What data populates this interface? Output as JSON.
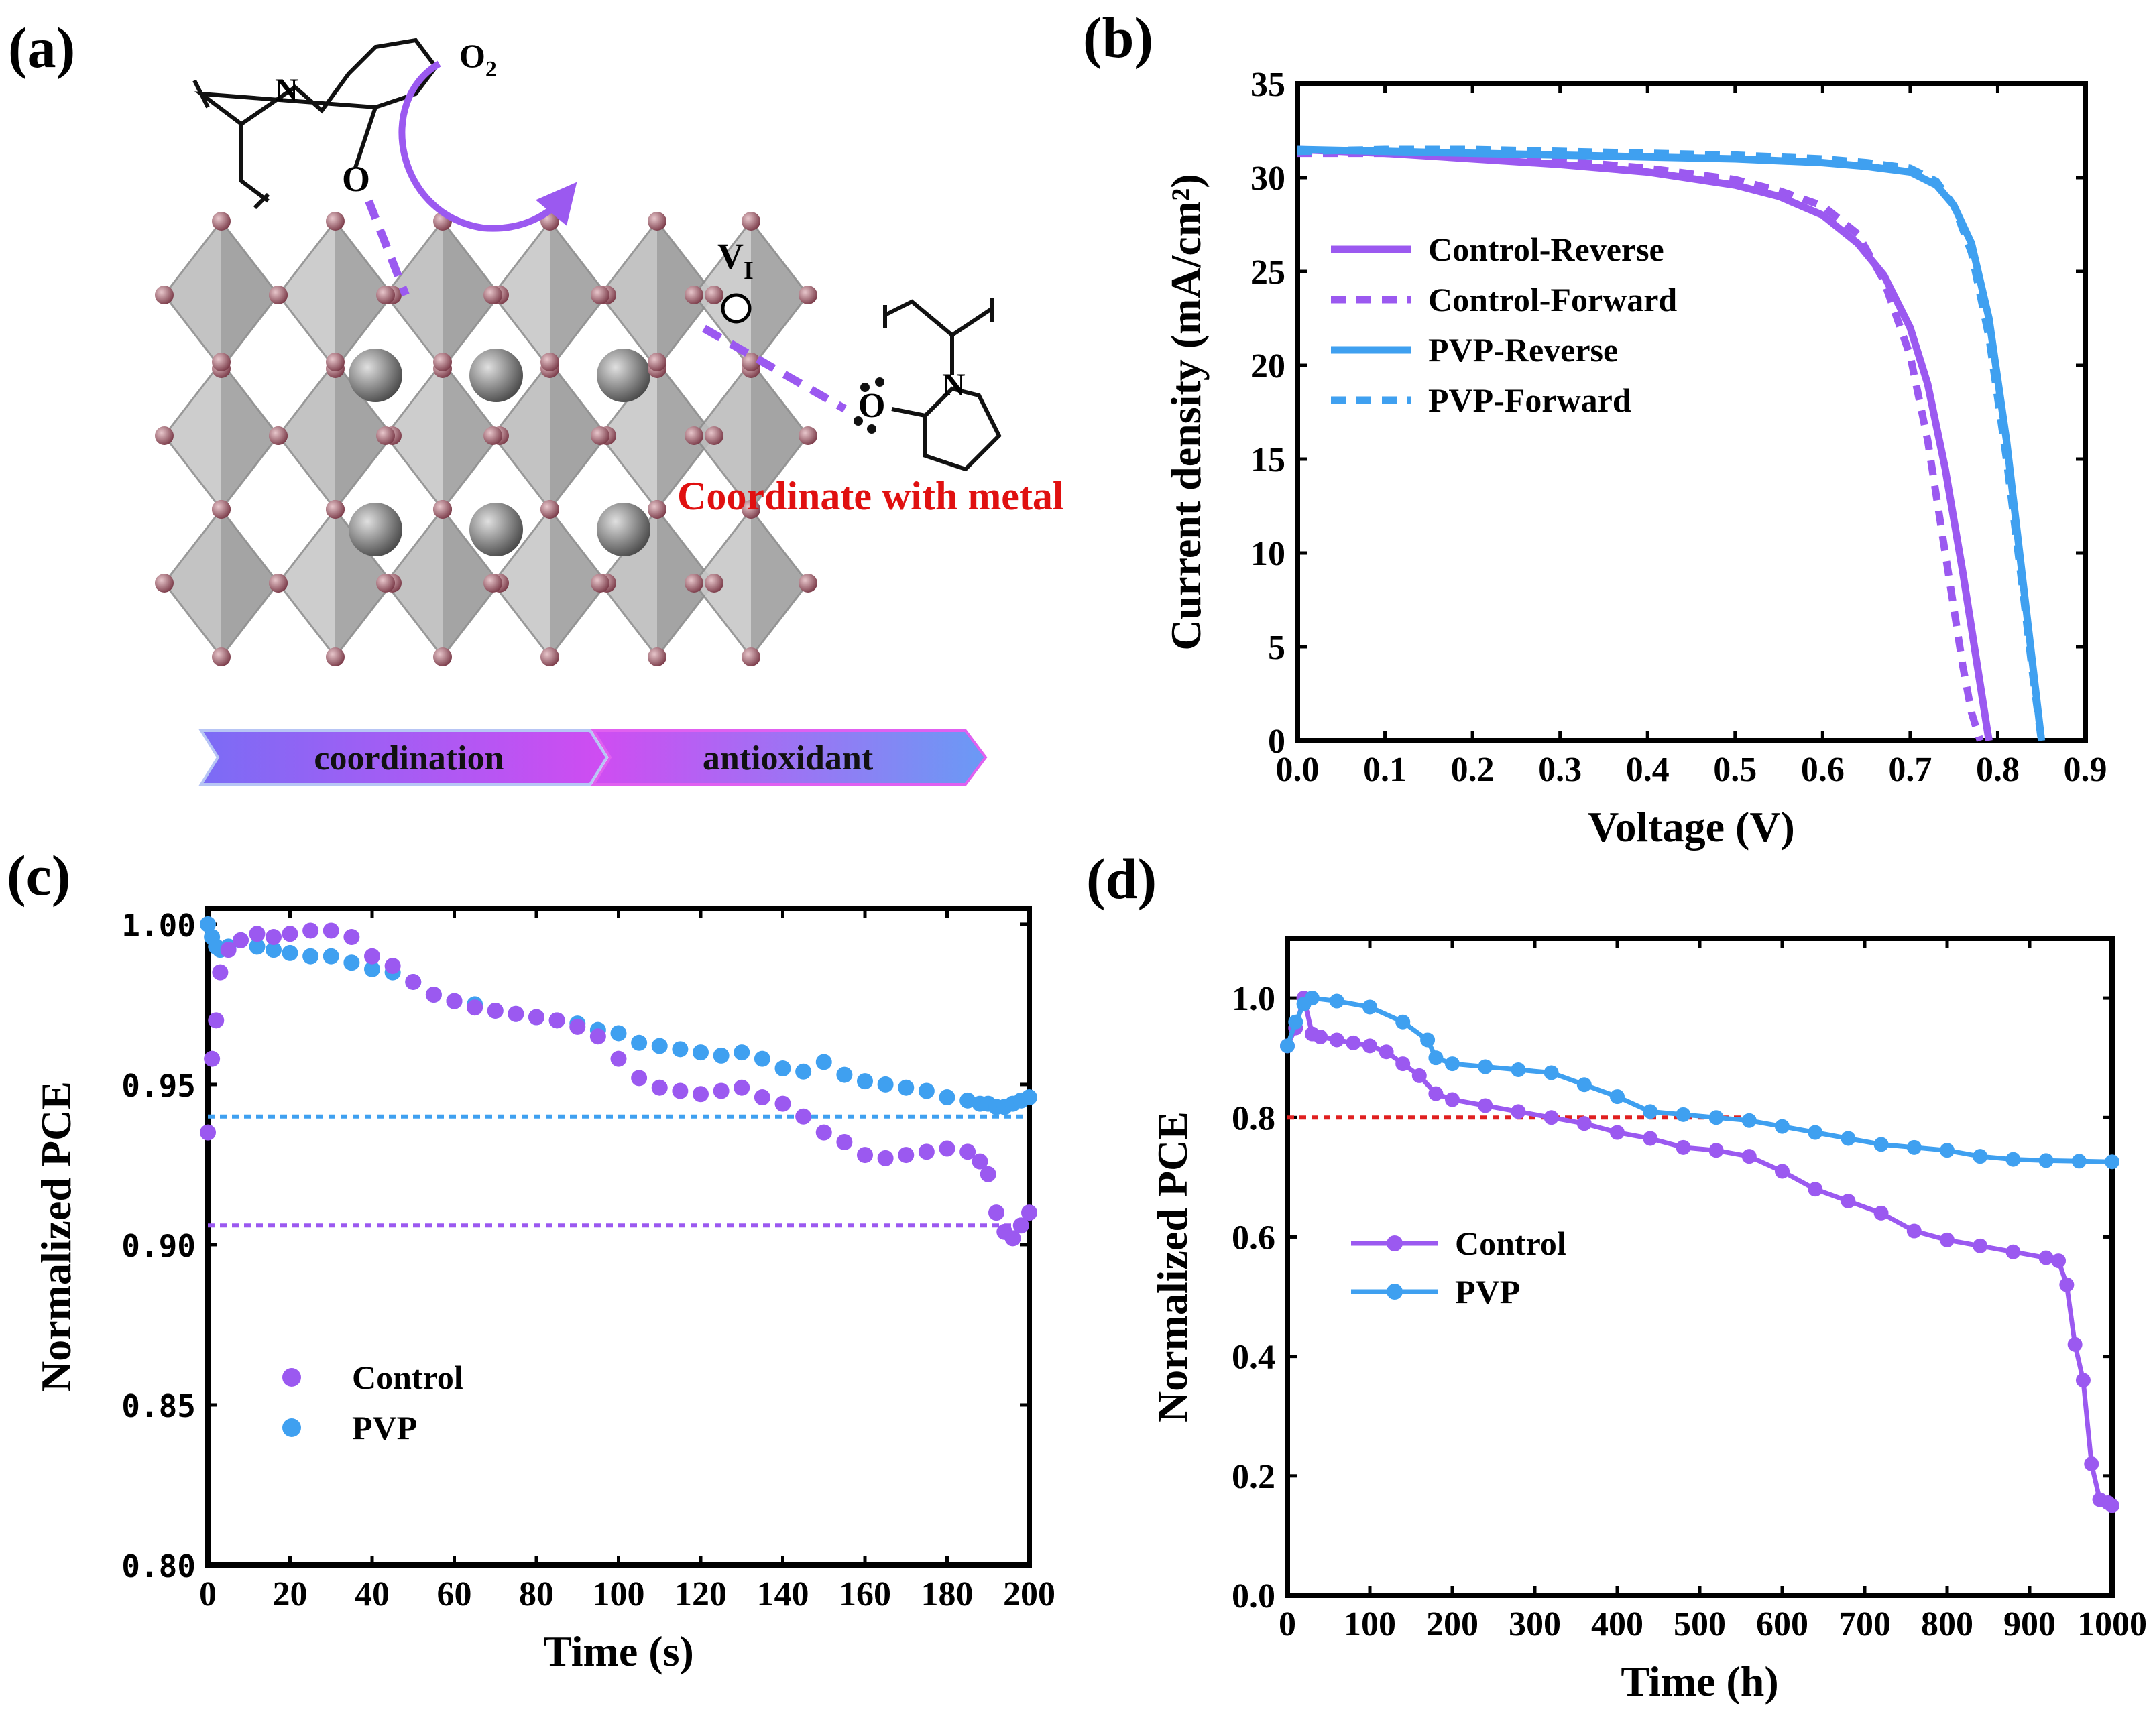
{
  "colors": {
    "control": "#9b59f0",
    "pvp": "#3fa0f0",
    "ref80": "#e02020",
    "panel_a_text": "#e01010"
  },
  "panel_a": {
    "label": "(a)",
    "oxygen": "O",
    "oxygen_sub": "2",
    "vacancy": "V",
    "vacancy_sub": "I",
    "coordinate_text": "Coordinate with metal",
    "arrow_1": "coordination",
    "arrow_2": "antioxidant",
    "atom_n1": "N",
    "atom_o1": "O",
    "atom_n2": "N",
    "atom_o2": "O"
  },
  "chart_data": [
    {
      "id": "b",
      "panel_label": "(b)",
      "type": "line",
      "xlabel": "Voltage (V)",
      "ylabel": "Current density (mA/cm²)",
      "xlim": [
        0,
        0.9
      ],
      "ylim": [
        0,
        35
      ],
      "xticks": [
        "0.0",
        "0.1",
        "0.2",
        "0.3",
        "0.4",
        "0.5",
        "0.6",
        "0.7",
        "0.8",
        "0.9"
      ],
      "yticks": [
        "0",
        "5",
        "10",
        "15",
        "20",
        "25",
        "30",
        "35"
      ],
      "series": [
        {
          "name": "Control-Reverse",
          "style": "solid",
          "color": "#9b59f0",
          "x": [
            0.0,
            0.1,
            0.2,
            0.3,
            0.4,
            0.5,
            0.55,
            0.6,
            0.64,
            0.67,
            0.7,
            0.72,
            0.74,
            0.76,
            0.77,
            0.78,
            0.79
          ],
          "y": [
            31.5,
            31.3,
            31.0,
            30.7,
            30.3,
            29.6,
            29.0,
            28.0,
            26.5,
            24.8,
            22.0,
            19.0,
            14.5,
            9.0,
            6.0,
            3.0,
            0.0
          ]
        },
        {
          "name": "Control-Forward",
          "style": "dash",
          "color": "#9b59f0",
          "x": [
            0.0,
            0.1,
            0.2,
            0.3,
            0.4,
            0.5,
            0.55,
            0.6,
            0.64,
            0.67,
            0.7,
            0.72,
            0.74,
            0.75,
            0.76,
            0.77,
            0.78
          ],
          "y": [
            31.3,
            31.3,
            31.1,
            30.9,
            30.5,
            29.9,
            29.3,
            28.5,
            27.0,
            24.5,
            20.5,
            16.0,
            10.0,
            7.0,
            4.0,
            1.5,
            0.0
          ]
        },
        {
          "name": "PVP-Reverse",
          "style": "solid",
          "color": "#3fa0f0",
          "x": [
            0.0,
            0.1,
            0.2,
            0.3,
            0.4,
            0.5,
            0.6,
            0.65,
            0.7,
            0.73,
            0.75,
            0.77,
            0.79,
            0.81,
            0.83,
            0.84,
            0.85
          ],
          "y": [
            31.5,
            31.4,
            31.3,
            31.2,
            31.1,
            31.0,
            30.8,
            30.6,
            30.3,
            29.6,
            28.5,
            26.5,
            22.5,
            16.0,
            8.0,
            4.0,
            0.0
          ]
        },
        {
          "name": "PVP-Forward",
          "style": "dash",
          "color": "#3fa0f0",
          "x": [
            0.0,
            0.1,
            0.2,
            0.3,
            0.4,
            0.5,
            0.6,
            0.65,
            0.7,
            0.73,
            0.75,
            0.77,
            0.79,
            0.81,
            0.83,
            0.84,
            0.85
          ],
          "y": [
            31.4,
            31.5,
            31.5,
            31.4,
            31.3,
            31.2,
            31.0,
            30.8,
            30.5,
            29.8,
            28.5,
            26.0,
            21.5,
            15.0,
            7.5,
            3.5,
            0.0
          ]
        }
      ]
    },
    {
      "id": "c",
      "panel_label": "(c)",
      "type": "scatter",
      "xlabel": "Time (s)",
      "ylabel": "Normalized PCE",
      "xlim": [
        0,
        200
      ],
      "ylim": [
        0.8,
        1.005
      ],
      "xticks": [
        "0",
        "20",
        "40",
        "60",
        "80",
        "100",
        "120",
        "140",
        "160",
        "180",
        "200"
      ],
      "yticks": [
        "0.80",
        "0.85",
        "0.90",
        "0.95",
        "1.00"
      ],
      "ytick_values": [
        0.8,
        0.85,
        0.9,
        0.95,
        1.0
      ],
      "reference_lines": [
        {
          "y": 0.906,
          "color": "#9b59f0"
        },
        {
          "y": 0.94,
          "color": "#3fa0f0"
        }
      ],
      "series": [
        {
          "name": "Control",
          "color": "#9b59f0",
          "x": [
            0,
            1,
            2,
            3,
            5,
            8,
            12,
            16,
            20,
            25,
            30,
            35,
            40,
            45,
            50,
            55,
            60,
            65,
            70,
            75,
            80,
            85,
            90,
            95,
            100,
            105,
            110,
            115,
            120,
            125,
            130,
            135,
            140,
            145,
            150,
            155,
            160,
            165,
            170,
            175,
            180,
            185,
            188,
            190,
            192,
            194,
            196,
            198,
            200
          ],
          "y": [
            0.935,
            0.958,
            0.97,
            0.985,
            0.992,
            0.995,
            0.997,
            0.996,
            0.997,
            0.998,
            0.998,
            0.996,
            0.99,
            0.987,
            0.982,
            0.978,
            0.976,
            0.974,
            0.973,
            0.972,
            0.971,
            0.97,
            0.968,
            0.965,
            0.958,
            0.952,
            0.949,
            0.948,
            0.947,
            0.948,
            0.949,
            0.946,
            0.944,
            0.94,
            0.935,
            0.932,
            0.928,
            0.927,
            0.928,
            0.929,
            0.93,
            0.929,
            0.926,
            0.922,
            0.91,
            0.904,
            0.902,
            0.906,
            0.91
          ]
        },
        {
          "name": "PVP",
          "color": "#3fa0f0",
          "x": [
            0,
            1,
            2,
            3,
            5,
            8,
            12,
            16,
            20,
            25,
            30,
            35,
            40,
            45,
            50,
            55,
            60,
            65,
            70,
            75,
            80,
            85,
            90,
            95,
            100,
            105,
            110,
            115,
            120,
            125,
            130,
            135,
            140,
            145,
            150,
            155,
            160,
            165,
            170,
            175,
            180,
            185,
            188,
            190,
            192,
            194,
            196,
            198,
            200
          ],
          "y": [
            1.0,
            0.996,
            0.993,
            0.992,
            0.993,
            0.995,
            0.993,
            0.992,
            0.991,
            0.99,
            0.99,
            0.988,
            0.986,
            0.985,
            0.982,
            0.978,
            0.976,
            0.975,
            0.973,
            0.972,
            0.971,
            0.97,
            0.969,
            0.967,
            0.966,
            0.963,
            0.962,
            0.961,
            0.96,
            0.959,
            0.96,
            0.958,
            0.955,
            0.954,
            0.957,
            0.953,
            0.951,
            0.95,
            0.949,
            0.948,
            0.946,
            0.945,
            0.944,
            0.944,
            0.943,
            0.943,
            0.944,
            0.945,
            0.946
          ]
        }
      ]
    },
    {
      "id": "d",
      "panel_label": "(d)",
      "type": "line",
      "xlabel": "Time (h)",
      "ylabel": "Normalized PCE",
      "xlim": [
        0,
        1000
      ],
      "ylim": [
        0.0,
        1.1
      ],
      "xticks": [
        "0",
        "100",
        "200",
        "300",
        "400",
        "500",
        "600",
        "700",
        "800",
        "900",
        "1000"
      ],
      "yticks": [
        "0.0",
        "0.2",
        "0.4",
        "0.6",
        "0.8",
        "1.0"
      ],
      "reference_lines": [
        {
          "y": 0.8,
          "x_range": [
            0,
            560
          ],
          "color": "#e02020"
        }
      ],
      "series": [
        {
          "name": "Control",
          "color": "#9b59f0",
          "marker": "circle",
          "x": [
            0,
            10,
            20,
            30,
            40,
            60,
            80,
            100,
            120,
            140,
            160,
            180,
            200,
            240,
            280,
            320,
            360,
            400,
            440,
            480,
            520,
            560,
            600,
            640,
            680,
            720,
            760,
            800,
            840,
            880,
            920,
            935,
            945,
            955,
            965,
            975,
            985,
            995,
            1000
          ],
          "y": [
            0.92,
            0.95,
            1.0,
            0.94,
            0.935,
            0.93,
            0.925,
            0.92,
            0.91,
            0.89,
            0.87,
            0.84,
            0.83,
            0.82,
            0.81,
            0.8,
            0.79,
            0.775,
            0.765,
            0.75,
            0.745,
            0.735,
            0.71,
            0.68,
            0.66,
            0.64,
            0.61,
            0.595,
            0.585,
            0.575,
            0.565,
            0.56,
            0.52,
            0.42,
            0.36,
            0.22,
            0.16,
            0.155,
            0.15
          ]
        },
        {
          "name": "PVP",
          "color": "#3fa0f0",
          "marker": "circle",
          "x": [
            0,
            10,
            20,
            30,
            60,
            100,
            140,
            170,
            180,
            200,
            240,
            280,
            320,
            360,
            400,
            440,
            480,
            520,
            560,
            600,
            640,
            680,
            720,
            760,
            800,
            840,
            880,
            920,
            960,
            1000
          ],
          "y": [
            0.92,
            0.96,
            0.99,
            1.0,
            0.995,
            0.985,
            0.96,
            0.93,
            0.9,
            0.89,
            0.885,
            0.88,
            0.875,
            0.855,
            0.835,
            0.81,
            0.805,
            0.8,
            0.795,
            0.785,
            0.775,
            0.765,
            0.755,
            0.75,
            0.745,
            0.735,
            0.73,
            0.728,
            0.727,
            0.726
          ]
        }
      ]
    }
  ]
}
